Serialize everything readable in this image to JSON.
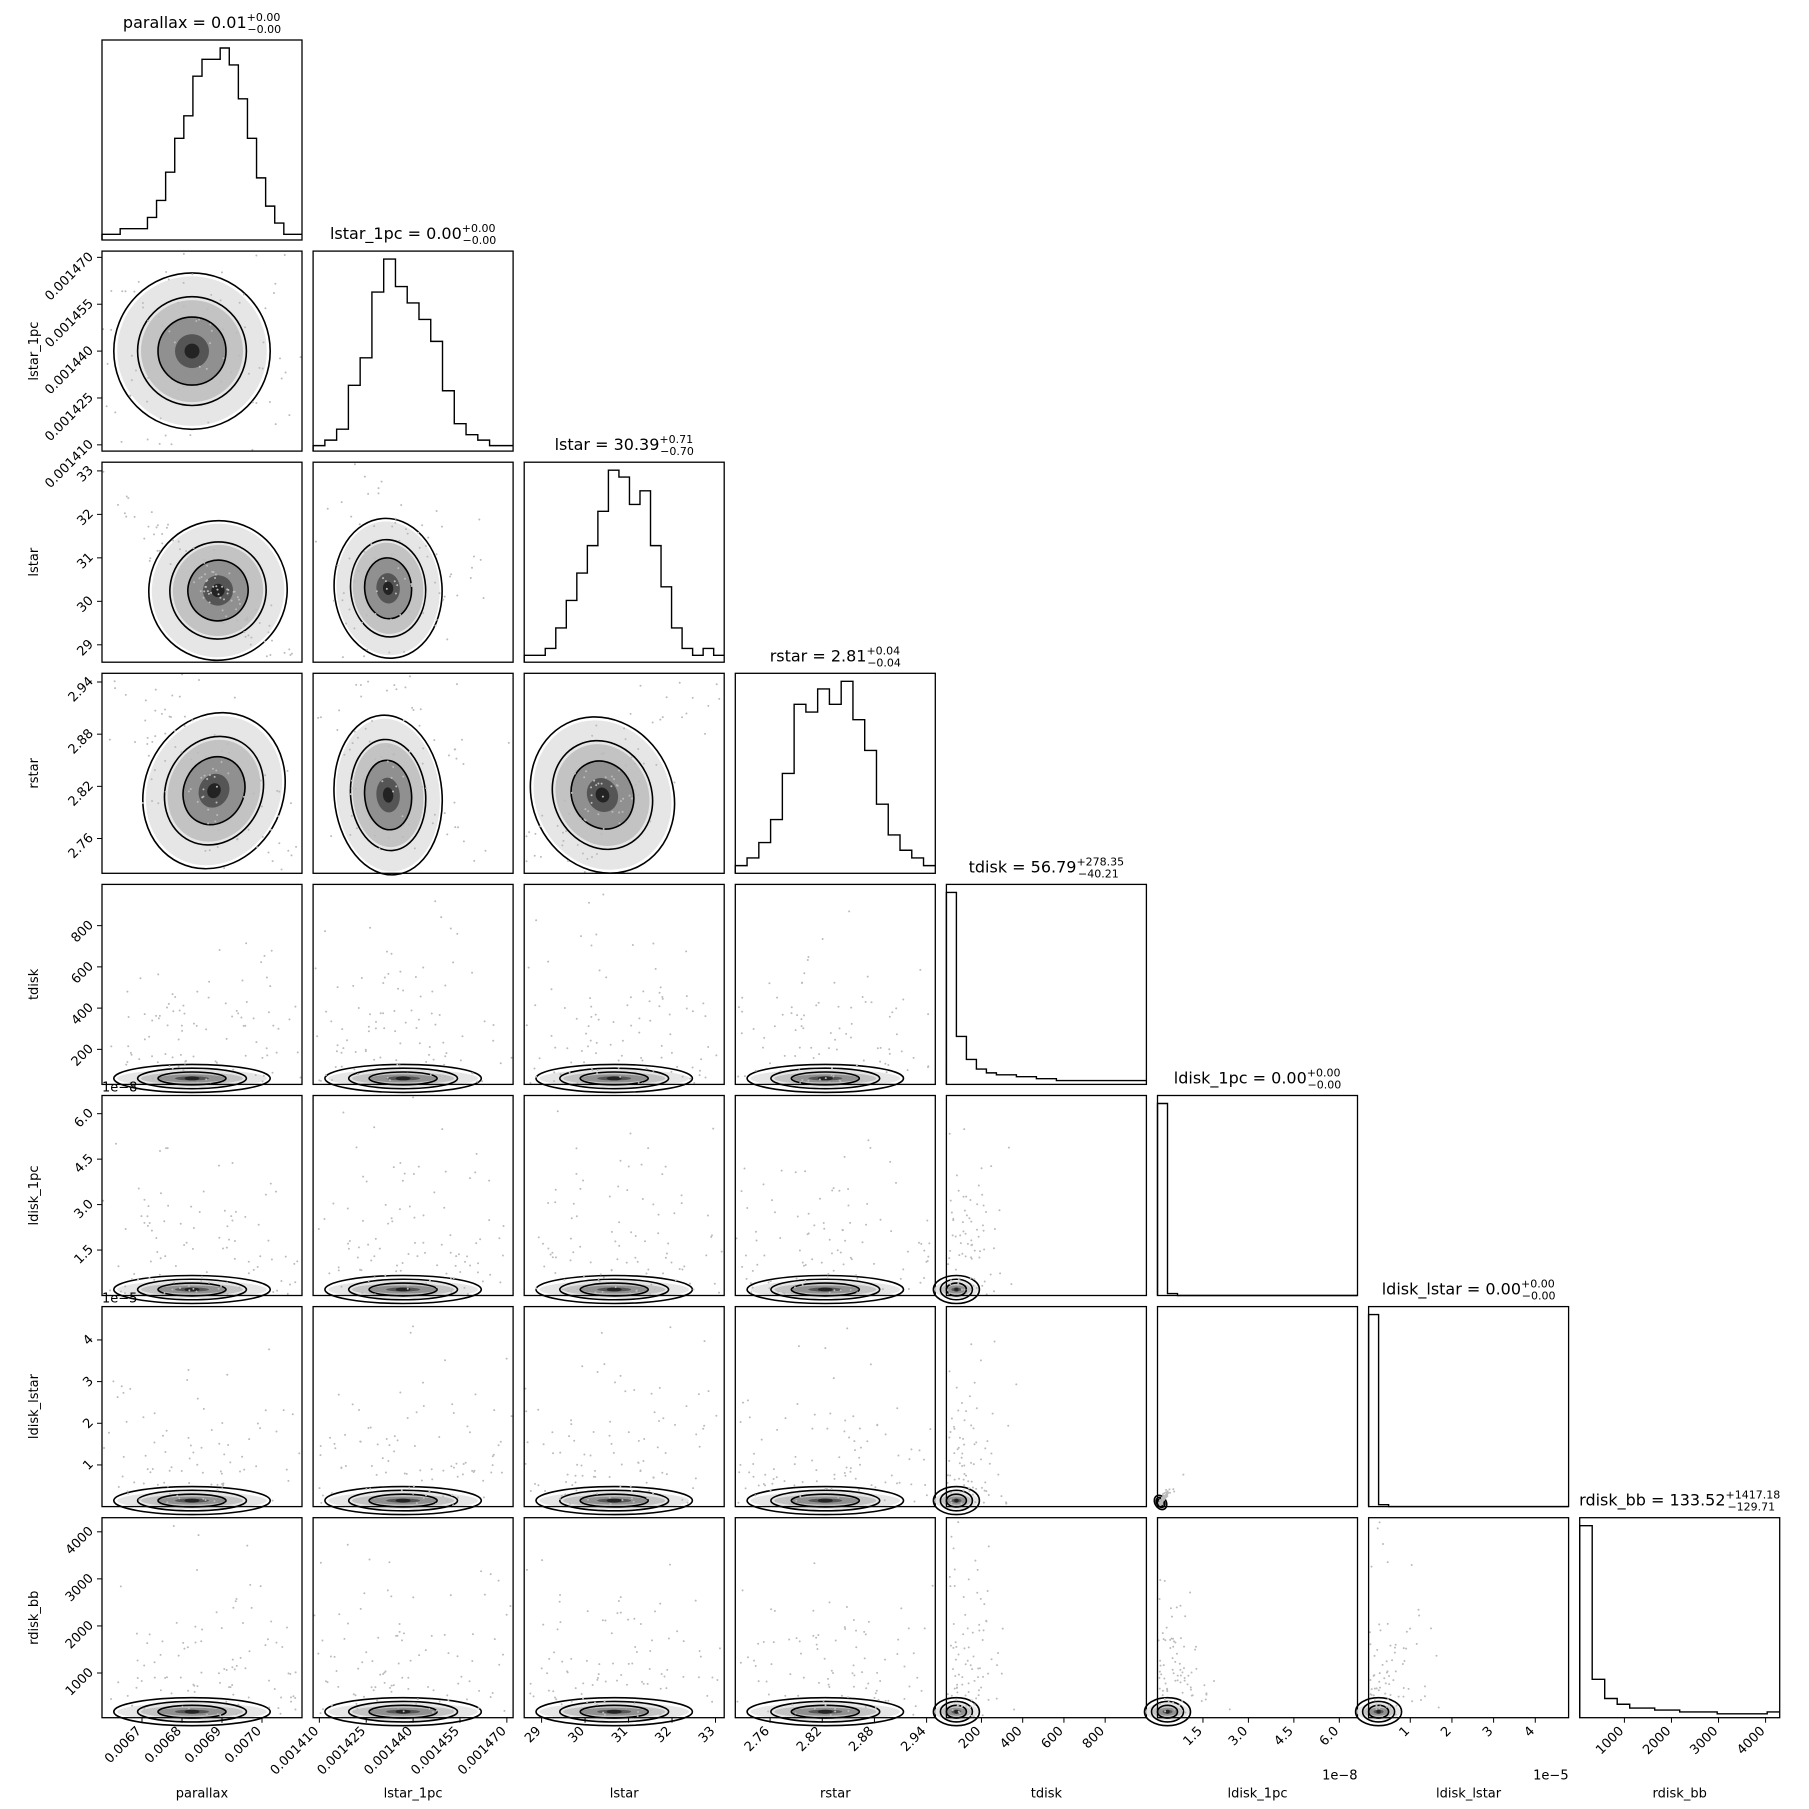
{
  "chart_data": {
    "type": "corner",
    "parameters": [
      {
        "name": "parallax",
        "title_prefix": "parallax = 0.01",
        "sup": "+0.00",
        "sub": "−0.00",
        "range": [
          0.0066,
          0.0071
        ],
        "ticks": [
          0.0067,
          0.0068,
          0.0069,
          0.007
        ],
        "tick_labels": [
          "0.0067",
          "0.0068",
          "0.0069",
          "0.0070"
        ],
        "offset_label": "",
        "hist": [
          1,
          1,
          2,
          2,
          2,
          4,
          7,
          12,
          18,
          22,
          29,
          32,
          32,
          34,
          31,
          25,
          18,
          11,
          6,
          3,
          1,
          1
        ]
      },
      {
        "name": "lstar_1pc",
        "title_prefix": "lstar_1pc = 0.00",
        "sup": "+0.00",
        "sub": "−0.00",
        "range": [
          0.001408,
          0.001472
        ],
        "ticks": [
          0.00141,
          0.001425,
          0.00144,
          0.001455,
          0.00147
        ],
        "tick_labels": [
          "0.001410",
          "0.001425",
          "0.001440",
          "0.001455",
          "0.001470"
        ],
        "offset_label": "",
        "hist": [
          1,
          2,
          4,
          12,
          17,
          29,
          35,
          30,
          27,
          24,
          20,
          11,
          5,
          3,
          2,
          1,
          1
        ]
      },
      {
        "name": "lstar",
        "title_prefix": "lstar = 30.39",
        "sup": "+0.71",
        "sub": "−0.70",
        "range": [
          28.6,
          33.2
        ],
        "ticks": [
          29,
          30,
          31,
          32,
          33
        ],
        "tick_labels": [
          "29",
          "30",
          "31",
          "32",
          "33"
        ],
        "offset_label": "",
        "hist": [
          1,
          1,
          2,
          5,
          9,
          13,
          17,
          22,
          28,
          27,
          23,
          25,
          17,
          11,
          5,
          2,
          1,
          2,
          1
        ]
      },
      {
        "name": "rstar",
        "title_prefix": "rstar = 2.81",
        "sup": "+0.04",
        "sub": "−0.04",
        "range": [
          2.72,
          2.95
        ],
        "ticks": [
          2.76,
          2.82,
          2.88,
          2.94
        ],
        "tick_labels": [
          "2.76",
          "2.82",
          "2.88",
          "2.94"
        ],
        "offset_label": "",
        "hist": [
          1,
          2,
          4,
          7,
          13,
          22,
          21,
          24,
          22,
          25,
          20,
          16,
          9,
          5,
          3,
          2,
          1
        ]
      },
      {
        "name": "tdisk",
        "title_prefix": "tdisk = 56.79",
        "sup": "+278.35",
        "sub": "−40.21",
        "range": [
          30,
          1000
        ],
        "ticks": [
          200,
          400,
          600,
          800
        ],
        "tick_labels": [
          "200",
          "400",
          "600",
          "800"
        ],
        "offset_label": "",
        "hist": [
          100,
          25,
          13,
          8,
          6,
          5,
          5,
          4,
          4,
          3,
          3,
          2,
          2,
          2,
          2,
          2,
          2,
          2,
          2,
          2
        ]
      },
      {
        "name": "ldisk_1pc",
        "title_prefix": "ldisk_1pc = 0.00",
        "sup": "+0.00",
        "sub": "−0.00",
        "range": [
          0.0,
          6.6
        ],
        "ticks": [
          1.5,
          3.0,
          4.5,
          6.0
        ],
        "tick_labels": [
          "1.5",
          "3.0",
          "4.5",
          "6.0"
        ],
        "offset_label": "1e−8",
        "hist": [
          100,
          1,
          0,
          0,
          0,
          0,
          0,
          0,
          0,
          0,
          0,
          0,
          0,
          0,
          0,
          0,
          0,
          0,
          0,
          0
        ]
      },
      {
        "name": "ldisk_lstar",
        "title_prefix": "ldisk_lstar = 0.00",
        "sup": "+0.00",
        "sub": "−0.00",
        "range": [
          0.0,
          4.8
        ],
        "ticks": [
          1,
          2,
          3,
          4
        ],
        "tick_labels": [
          "1",
          "2",
          "3",
          "4"
        ],
        "offset_label": "1e−5",
        "hist": [
          100,
          1,
          0,
          0,
          0,
          0,
          0,
          0,
          0,
          0,
          0,
          0,
          0,
          0,
          0,
          0,
          0,
          0,
          0,
          0
        ]
      },
      {
        "name": "rdisk_bb",
        "title_prefix": "rdisk_bb = 133.52",
        "sup": "+1417.18",
        "sub": "−129.71",
        "range": [
          50,
          4300
        ],
        "ticks": [
          1000,
          2000,
          3000,
          4000
        ],
        "tick_labels": [
          "1000",
          "2000",
          "3000",
          "4000"
        ],
        "offset_label": "",
        "hist": [
          100,
          20,
          10,
          7,
          5,
          5,
          4,
          4,
          3,
          3,
          3,
          2,
          2,
          2,
          2,
          3
        ]
      }
    ],
    "joint_peaks": {
      "lstar|parallax": {
        "center": [
          0.00689,
          30.25
        ],
        "sd": [
          7.5e-05,
          0.7
        ],
        "rho": -0.97
      },
      "lstar|lstar_1pc": {
        "center": [
          0.001432,
          30.3
        ],
        "sd": [
          7.5e-06,
          0.7
        ],
        "rho": 0.1
      },
      "rstar|parallax": {
        "center": [
          0.00688,
          2.815
        ],
        "sd": [
          7.5e-05,
          0.04
        ],
        "rho": -0.8
      },
      "rstar|lstar_1pc": {
        "center": [
          0.001432,
          2.81
        ],
        "sd": [
          7.5e-06,
          0.04
        ],
        "rho": 0.1
      },
      "rstar|lstar": {
        "center": [
          30.4,
          2.81
        ],
        "sd": [
          0.7,
          0.04
        ],
        "rho": 0.85
      },
      "ldisk_lstar|ldisk_1pc": {
        "center": [
          0.1,
          0.1
        ],
        "sd": [
          0.08,
          0.08
        ],
        "rho": 0.95
      }
    },
    "xlabel_note": "Diagonal panels are 1D marginal histograms; lower panels are 2D density contours with scatter points.",
    "grid": false
  }
}
